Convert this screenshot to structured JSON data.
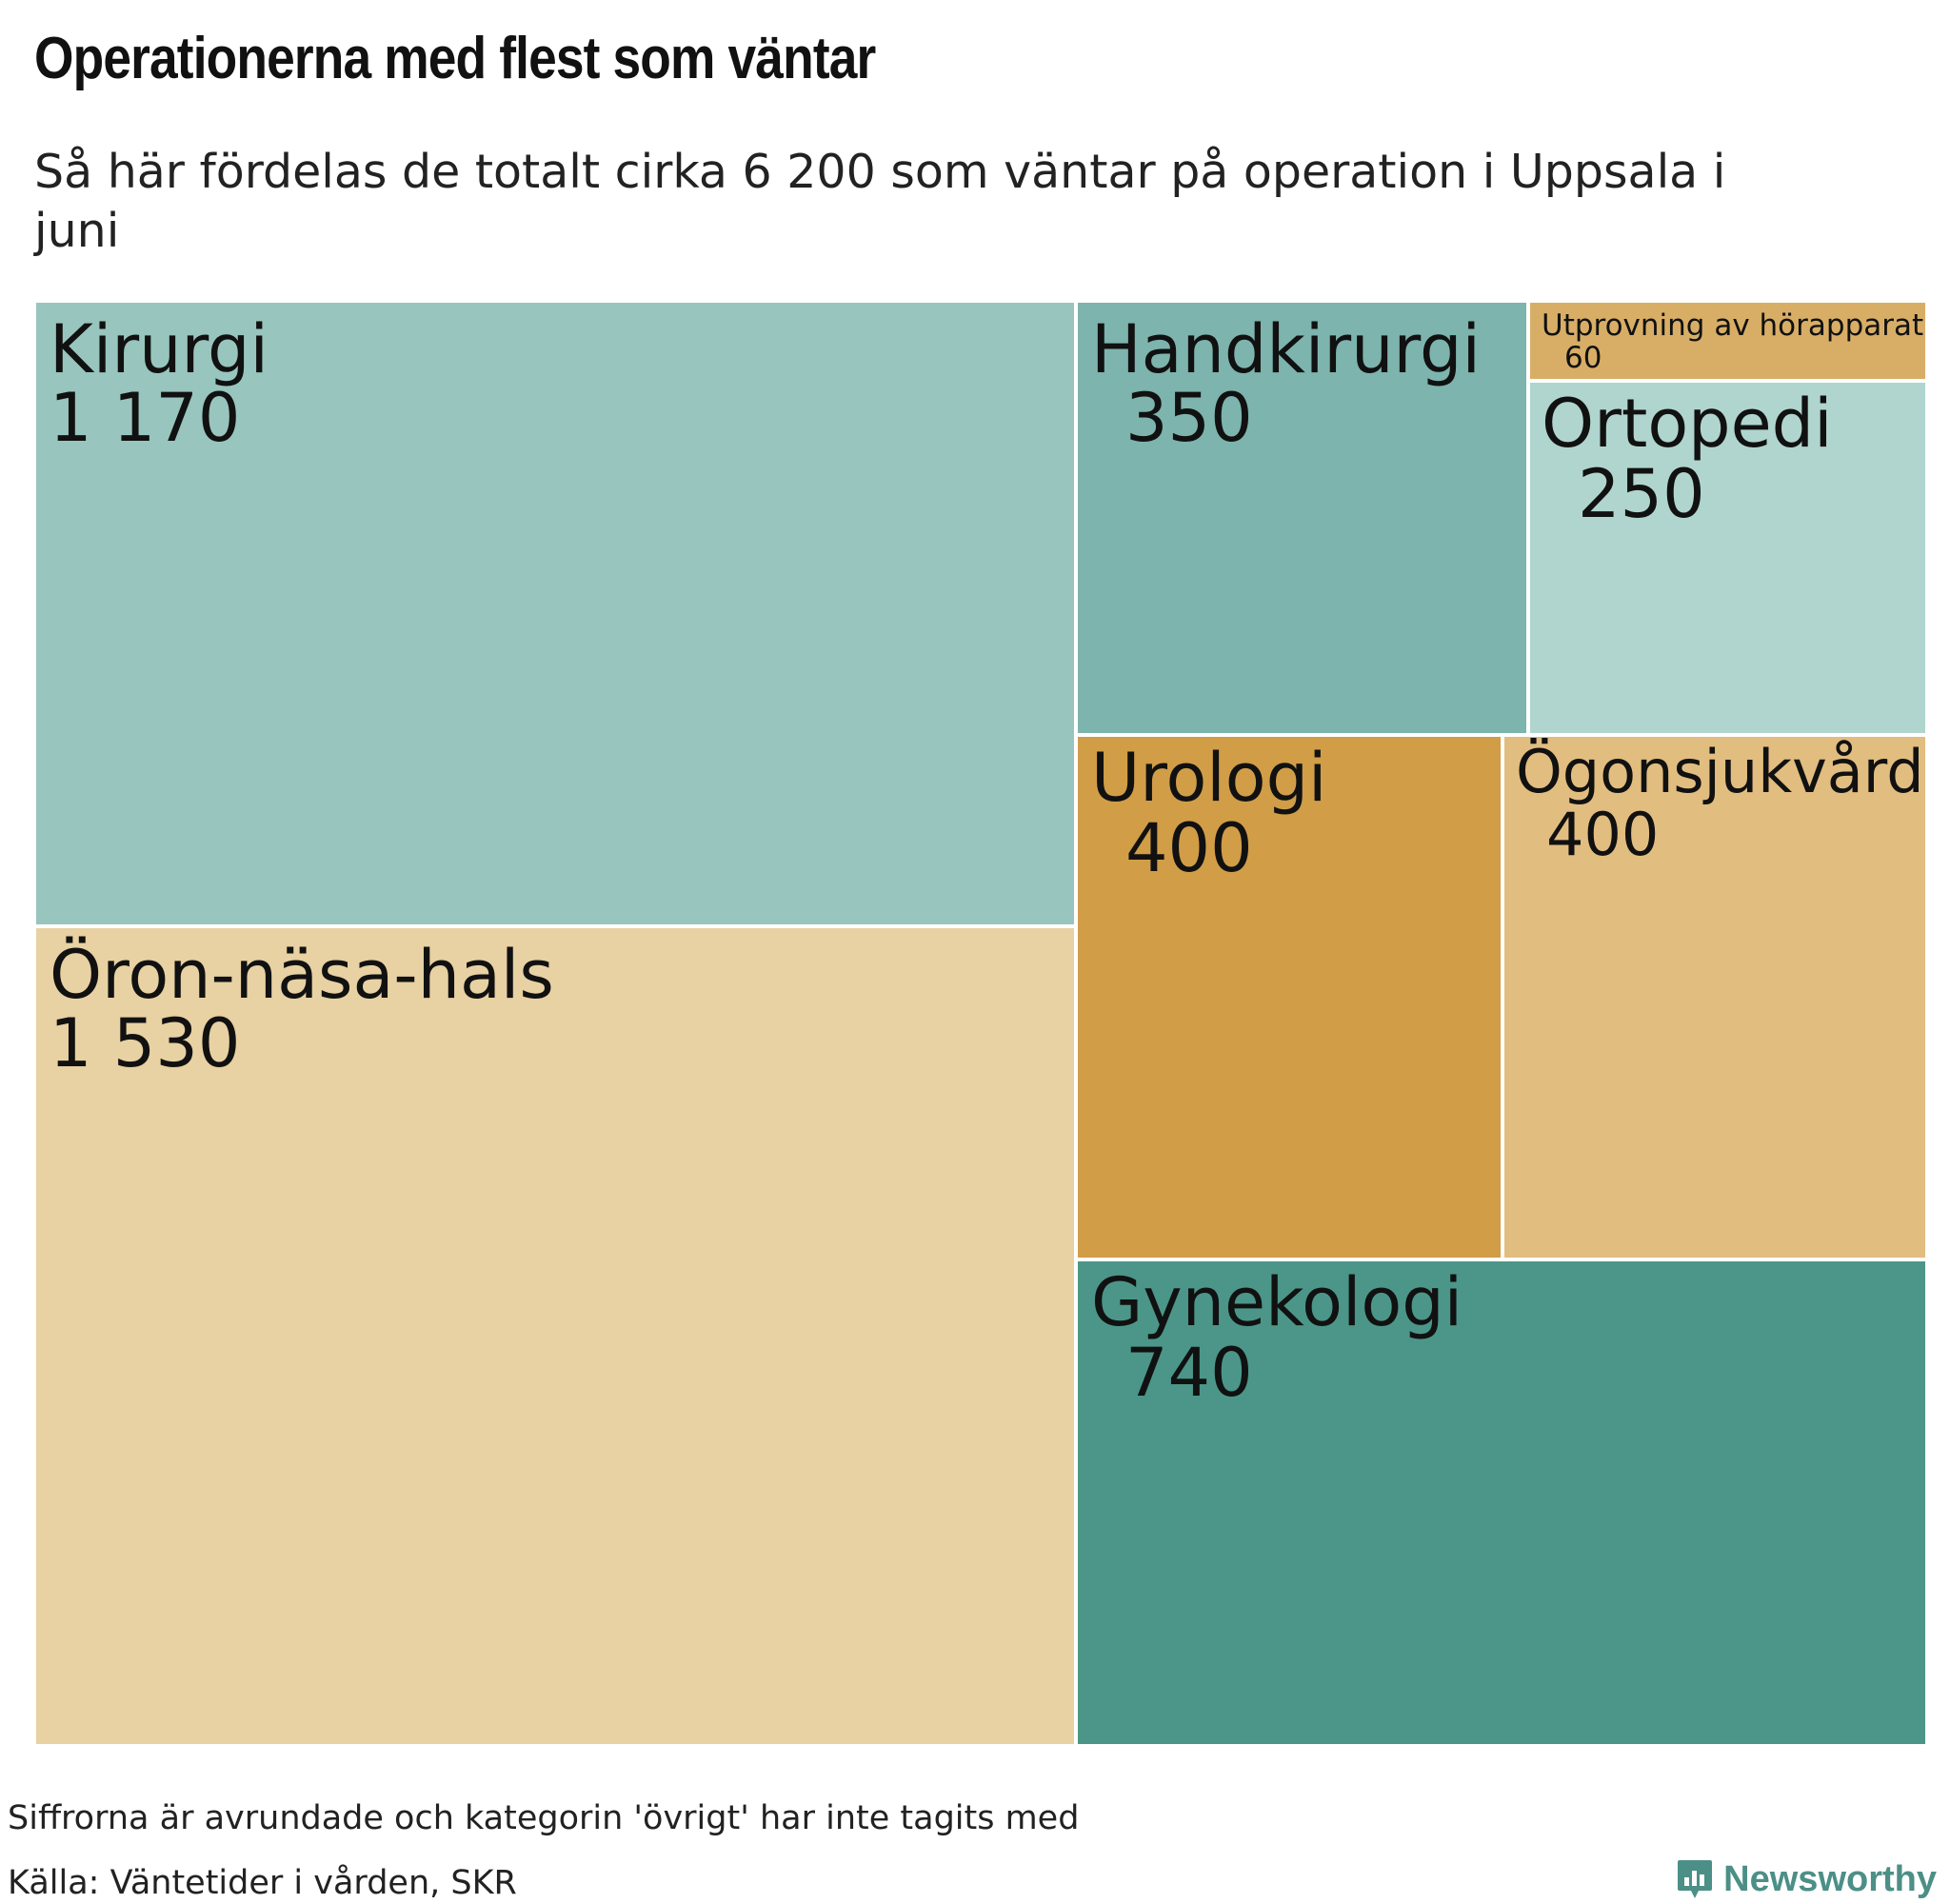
{
  "header": {
    "title": "Operationerna med flest som väntar",
    "subtitle": "Så här fördelas de totalt cirka 6 200 som väntar på operation i Uppsala i juni"
  },
  "chart_data": {
    "type": "treemap",
    "items": [
      {
        "name": "Kirurgi",
        "label": "1 170",
        "value": 1170,
        "color": "#98c5bd"
      },
      {
        "name": "Öron-näsa-hals",
        "label": "1 530",
        "value": 1530,
        "color": "#e8d1a2"
      },
      {
        "name": "Handkirurgi",
        "label": "350",
        "value": 350,
        "color": "#7db4ad"
      },
      {
        "name": "Utprovning av hörapparat",
        "label": "60",
        "value": 60,
        "color": "#d8ae66"
      },
      {
        "name": "Ortopedi",
        "label": "250",
        "value": 250,
        "color": "#b0d5ce"
      },
      {
        "name": "Urologi",
        "label": "400",
        "value": 400,
        "color": "#d19d47"
      },
      {
        "name": "Ögonsjukvård",
        "label": "400",
        "value": 400,
        "color": "#e2bd80"
      },
      {
        "name": "Gynekologi",
        "label": "740",
        "value": 740,
        "color": "#4b9689"
      }
    ]
  },
  "footer": {
    "note": "Siffrorna är avrundade och kategorin 'övrigt' har inte tagits med",
    "source": "Källa: Väntetider i vården, SKR",
    "brand": "Newsworthy",
    "brand_color": "#4c8f86"
  }
}
